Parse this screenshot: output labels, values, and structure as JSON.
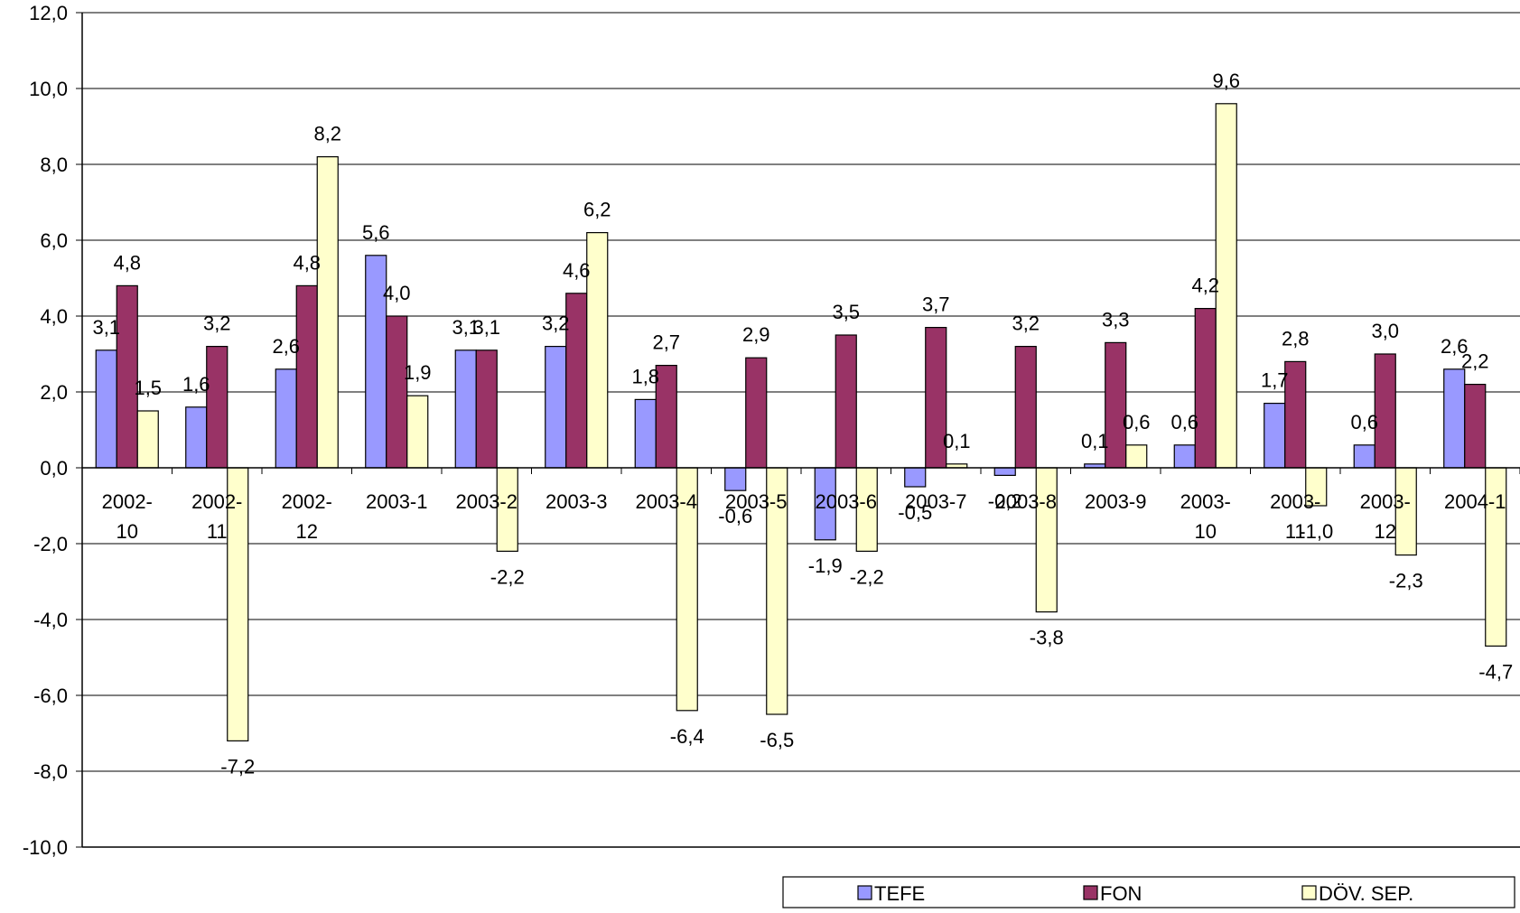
{
  "chart_data": {
    "type": "bar",
    "title": "",
    "xlabel": "",
    "ylabel": "",
    "ylim": [
      -10,
      12
    ],
    "y_ticks": [
      "12,0",
      "10,0",
      "8,0",
      "6,0",
      "4,0",
      "2,0",
      "0,0",
      "-2,0",
      "-4,0",
      "-6,0",
      "-8,0",
      "-10,0"
    ],
    "y_tick_values": [
      12,
      10,
      8,
      6,
      4,
      2,
      0,
      -2,
      -4,
      -6,
      -8,
      -10
    ],
    "grid": true,
    "legend_position": "bottom-right",
    "categories": [
      [
        "2002-",
        "10"
      ],
      [
        "2002-",
        "11"
      ],
      [
        "2002-",
        "12"
      ],
      [
        "2003-1"
      ],
      [
        "2003-2"
      ],
      [
        "2003-3"
      ],
      [
        "2003-4"
      ],
      [
        "2003-5"
      ],
      [
        "2003-6"
      ],
      [
        "2003-7"
      ],
      [
        "2003-8"
      ],
      [
        "2003-9"
      ],
      [
        "2003-",
        "10"
      ],
      [
        "2003-",
        "11"
      ],
      [
        "2003-",
        "12"
      ],
      [
        "2004-1"
      ]
    ],
    "series": [
      {
        "name": "TEFE",
        "color": "#9999ff",
        "values": [
          3.1,
          1.6,
          2.6,
          5.6,
          3.1,
          3.2,
          1.8,
          -0.6,
          -1.9,
          -0.5,
          -0.2,
          0.1,
          0.6,
          1.7,
          0.6,
          2.6
        ],
        "labels": [
          "3,1",
          "1,6",
          "2,6",
          "5,6",
          "3,1",
          "3,2",
          "1,8",
          "-0,6",
          "-1,9",
          "-0,5",
          "-0,2",
          "0,1",
          "0,6",
          "1,7",
          "0,6",
          "2,6"
        ]
      },
      {
        "name": "FON",
        "color": "#993366",
        "values": [
          4.8,
          3.2,
          4.8,
          4.0,
          3.1,
          4.6,
          2.7,
          2.9,
          3.5,
          3.7,
          3.2,
          3.3,
          4.2,
          2.8,
          3.0,
          2.2
        ],
        "labels": [
          "4,8",
          "3,2",
          "4,8",
          "4,0",
          "3,1",
          "4,6",
          "2,7",
          "2,9",
          "3,5",
          "3,7",
          "3,2",
          "3,3",
          "4,2",
          "2,8",
          "3,0",
          "2,2"
        ]
      },
      {
        "name": "DÖV. SEP.",
        "color": "#ffffcc",
        "values": [
          1.5,
          -7.2,
          8.2,
          1.9,
          -2.2,
          6.2,
          -6.4,
          -6.5,
          -2.2,
          0.1,
          -3.8,
          0.6,
          9.6,
          -1.0,
          -2.3,
          -4.7
        ],
        "labels": [
          "1,5",
          "-7,2",
          "8,2",
          "1,9",
          "-2,2",
          "6,2",
          "-6,4",
          "-6,5",
          "-2,2",
          "0,1",
          "-3,8",
          "0,6",
          "9,6",
          "-1,0",
          "-2,3",
          "-4,7"
        ]
      }
    ]
  }
}
